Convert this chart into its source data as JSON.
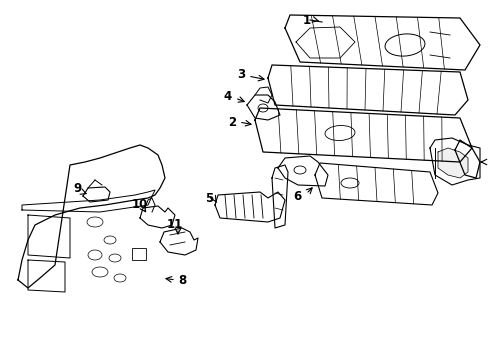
{
  "background_color": "#ffffff",
  "line_color": "#000000",
  "text_color": "#000000",
  "figsize": [
    4.89,
    3.6
  ],
  "dpi": 100,
  "label_fontsize": 8.5
}
